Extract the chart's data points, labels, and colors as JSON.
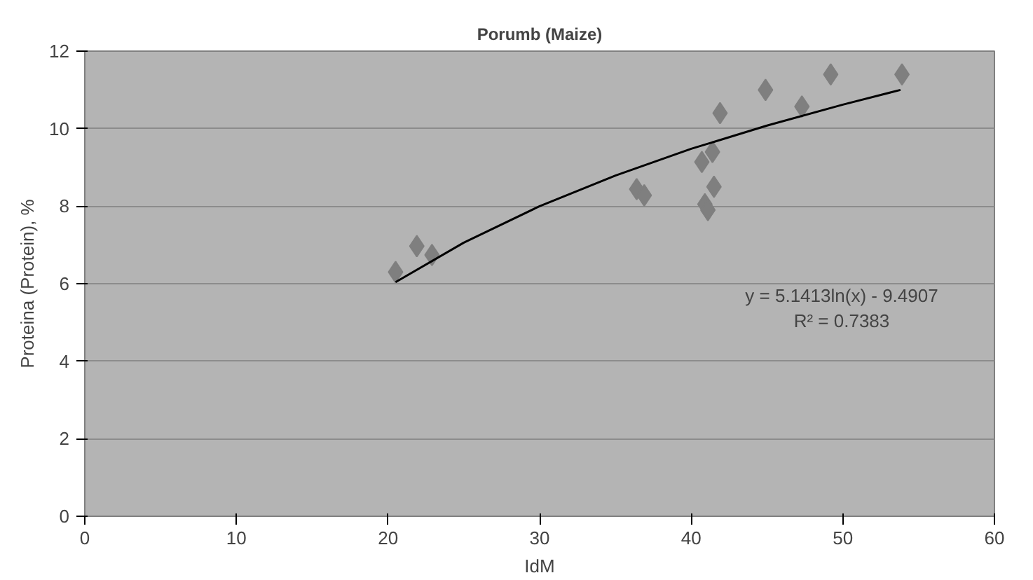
{
  "chart_data": {
    "type": "scatter",
    "title": "Porumb (Maize)",
    "xlabel": "IdM",
    "ylabel": "Proteina (Protein), %",
    "xlim": [
      0,
      60
    ],
    "xticks": [
      0,
      10,
      20,
      30,
      40,
      50,
      60
    ],
    "ylim": [
      0,
      12
    ],
    "yticks": [
      0,
      2,
      4,
      6,
      8,
      10,
      12
    ],
    "grid": "y",
    "marker": "diamond",
    "annotations": [
      "y = 5.1413ln(x) - 9.4907",
      "R² = 0.7383"
    ],
    "series": [
      {
        "color": "#7f7f7f",
        "x": [
          20.5,
          21.9,
          22.9,
          36.4,
          36.9,
          40.7,
          41.4,
          41.5,
          40.9,
          41.1,
          41.9,
          44.9,
          47.3,
          49.2,
          53.9
        ],
        "values": [
          6.3,
          6.97,
          6.74,
          8.44,
          8.28,
          9.14,
          9.4,
          8.5,
          8.05,
          7.9,
          10.4,
          11.0,
          10.57,
          11.4,
          11.4
        ]
      },
      {
        "type": "line",
        "color": "#000000",
        "marker": "none",
        "x": [
          20.5,
          25,
          30,
          35,
          40,
          45,
          50,
          53.8
        ],
        "values": [
          6.04,
          7.06,
          8.0,
          8.79,
          9.48,
          10.08,
          10.62,
          11.0
        ]
      }
    ]
  }
}
